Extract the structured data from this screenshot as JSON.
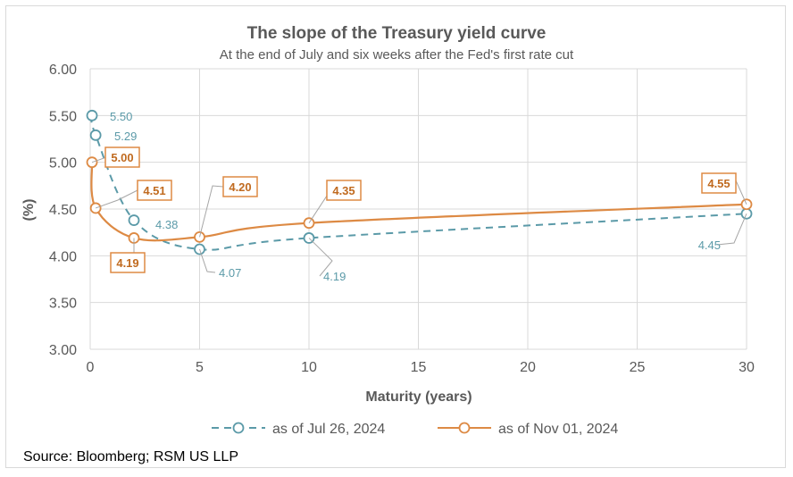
{
  "chart_data": {
    "type": "line",
    "title": "The slope of the Treasury yield curve",
    "subtitle": "At the end of July and six weeks after the Fed's first rate cut",
    "xlabel": "Maturity (years)",
    "ylabel": "(%)",
    "xlim": [
      0,
      30
    ],
    "ylim": [
      3.0,
      6.0
    ],
    "x_ticks": [
      "0",
      "5",
      "10",
      "15",
      "20",
      "25",
      "30"
    ],
    "y_ticks": [
      "3.00",
      "3.50",
      "4.00",
      "4.50",
      "5.00",
      "5.50",
      "6.00"
    ],
    "grid": "vertical and horizontal",
    "legend_position": "bottom",
    "series": [
      {
        "name": "as of Jul 26, 2024",
        "color": "#5b9aa8",
        "style": "dashed",
        "x": [
          0.083,
          0.25,
          2,
          5,
          10,
          30
        ],
        "y": [
          5.5,
          5.29,
          4.38,
          4.07,
          4.19,
          4.45
        ],
        "labels": [
          "5.50",
          "5.29",
          "4.38",
          "4.07",
          "4.19",
          "4.45"
        ]
      },
      {
        "name": "as of Nov 01, 2024",
        "color": "#dd8a44",
        "style": "solid",
        "x": [
          0.083,
          0.25,
          2,
          5,
          10,
          30
        ],
        "y": [
          5.0,
          4.51,
          4.19,
          4.2,
          4.35,
          4.55
        ],
        "labels": [
          "5.00",
          "4.51",
          "4.19",
          "4.20",
          "4.35",
          "4.55"
        ]
      }
    ]
  },
  "source": "Source: Bloomberg; RSM US LLP"
}
